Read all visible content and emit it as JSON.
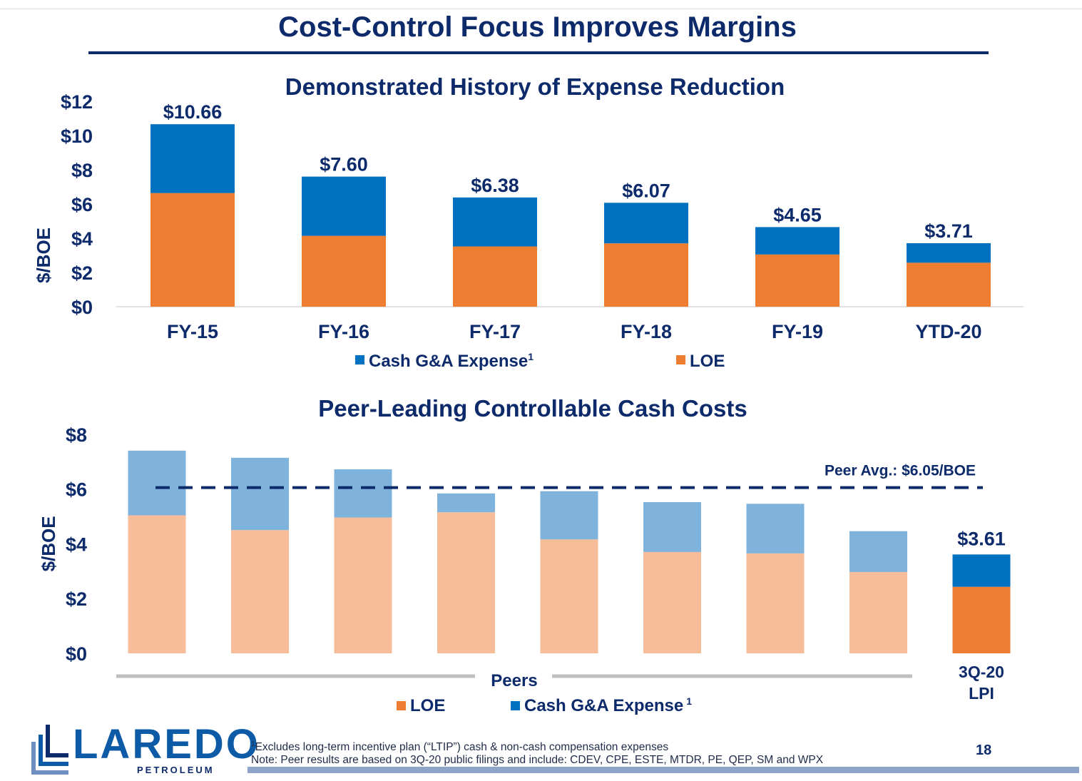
{
  "page": {
    "title": "Cost-Control Focus Improves Margins",
    "footnote1_sup": "1",
    "footnote1": "Excludes long-term incentive plan (“LTIP”) cash & non-cash compensation expenses",
    "footnote2": "Note: Peer results are based on 3Q-20 public filings and include: CDEV, CPE, ESTE, MTDR, PE, QEP, SM and WPX",
    "page_number": "18",
    "logo_main": "LAREDO",
    "logo_sub": "PETROLEUM"
  },
  "colors": {
    "navy": "#0d2a6b",
    "cash_ga": "#0070c0",
    "loe": "#ed7d31",
    "peer_cash_ga": "#7fb3dc",
    "peer_loe": "#f6bd98",
    "peers_line": "#bfbfbf"
  },
  "chart_data": [
    {
      "type": "bar",
      "stacked": true,
      "title": "Demonstrated History of Expense Reduction",
      "ylabel": "$/BOE",
      "ylim": [
        0,
        12
      ],
      "yticks": [
        "$0",
        "$2",
        "$4",
        "$6",
        "$8",
        "$10",
        "$12"
      ],
      "categories": [
        "FY-15",
        "FY-16",
        "FY-17",
        "FY-18",
        "FY-19",
        "YTD-20"
      ],
      "totals": [
        "$10.66",
        "$7.60",
        "$6.38",
        "$6.07",
        "$4.65",
        "$3.71"
      ],
      "series": [
        {
          "name": "LOE",
          "values": [
            6.64,
            4.14,
            3.52,
            3.7,
            3.05,
            2.57
          ]
        },
        {
          "name": "Cash G&A Expense",
          "values": [
            4.02,
            3.46,
            2.86,
            2.37,
            1.6,
            1.14
          ]
        }
      ],
      "legend": [
        {
          "label": "Cash G&A Expense",
          "sup": "1",
          "color": "#0070c0"
        },
        {
          "label": "LOE",
          "color": "#ed7d31"
        }
      ]
    },
    {
      "type": "bar",
      "stacked": true,
      "title": "Peer-Leading Controllable Cash Costs",
      "ylabel": "$/BOE",
      "ylim": [
        0,
        8
      ],
      "yticks": [
        "$0",
        "$2",
        "$4",
        "$6",
        "$8"
      ],
      "peer_count": 8,
      "peers": {
        "loe": [
          5.04,
          4.5,
          4.96,
          5.15,
          4.16,
          3.7,
          3.65,
          2.97
        ],
        "cash_ga": [
          2.36,
          2.64,
          1.76,
          0.69,
          1.76,
          1.82,
          1.81,
          1.49
        ]
      },
      "lpi": {
        "label_line1": "3Q-20",
        "label_line2": "LPI",
        "loe": 2.43,
        "cash_ga": 1.18,
        "total_label": "$3.61"
      },
      "peer_avg": {
        "value": 6.05,
        "label": "Peer Avg.: $6.05/BOE"
      },
      "peers_group_label": "Peers",
      "legend": [
        {
          "label": "LOE",
          "color": "#ed7d31"
        },
        {
          "label": "Cash G&A Expense",
          "sup": "1",
          "color": "#0070c0"
        }
      ]
    }
  ]
}
